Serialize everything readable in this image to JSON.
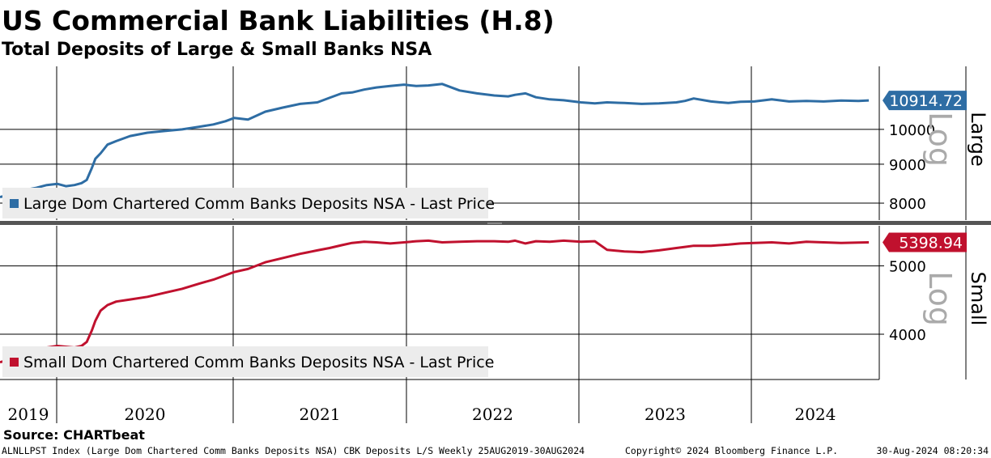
{
  "header": {
    "title": "US Commercial Bank Liabilities (H.8)",
    "subtitle": "Total Deposits of Large & Small Banks NSA"
  },
  "footer": {
    "source": "Source: CHARTbeat",
    "index_info": "ALNLLPST Index (Large Dom Chartered Comm Banks Deposits NSA) CBK Deposits L/S  Weekly 25AUG2019-30AUG2024",
    "copyright": "Copyright© 2024 Bloomberg Finance L.P.",
    "timestamp": "30-Aug-2024 08:20:34"
  },
  "chart_data": [
    {
      "type": "line",
      "panel": "Large",
      "scale_label": "Log",
      "log_scale": true,
      "legend": "Large Dom Chartered Comm Banks Deposits NSA - Last Price",
      "last_value_label": "10914.72",
      "last_value": 10914.72,
      "color": "#2e6da4",
      "y_ticks": [
        8000,
        9000,
        10000
      ],
      "y_tick_labels": [
        "8000",
        "9000",
        "10000"
      ],
      "ylim": [
        7600,
        12100
      ],
      "x_ticks": [
        2019.65,
        2020.0,
        2021.0,
        2022.0,
        2023.0,
        2024.0
      ],
      "series": [
        {
          "x": [
            2019.65,
            2019.7,
            2019.75,
            2019.8,
            2019.86,
            2019.92,
            2019.98,
            2020.03,
            2020.08,
            2020.12,
            2020.15,
            2020.18,
            2020.2,
            2020.23,
            2020.27,
            2020.32,
            2020.4,
            2020.5,
            2020.6,
            2020.7,
            2020.8,
            2020.88,
            2020.95,
            2021.0,
            2021.08,
            2021.18,
            2021.28,
            2021.38,
            2021.48,
            2021.55,
            2021.62,
            2021.68,
            2021.75,
            2021.82,
            2021.9,
            2021.98,
            2022.05,
            2022.12,
            2022.2,
            2022.3,
            2022.4,
            2022.5,
            2022.58,
            2022.62,
            2022.68,
            2022.74,
            2022.82,
            2022.9,
            2023.0,
            2023.08,
            2023.15,
            2023.25,
            2023.35,
            2023.45,
            2023.55,
            2023.6,
            2023.65,
            2023.75,
            2023.85,
            2023.92,
            2024.0,
            2024.1,
            2024.2,
            2024.3,
            2024.4,
            2024.5,
            2024.6,
            2024.66
          ],
          "y": [
            8150,
            8200,
            8250,
            8330,
            8380,
            8450,
            8480,
            8420,
            8450,
            8500,
            8580,
            8900,
            9150,
            9300,
            9550,
            9650,
            9800,
            9900,
            9950,
            10000,
            10080,
            10150,
            10250,
            10350,
            10300,
            10550,
            10680,
            10800,
            10850,
            11000,
            11150,
            11180,
            11280,
            11350,
            11400,
            11450,
            11400,
            11420,
            11470,
            11250,
            11150,
            11080,
            11050,
            11100,
            11150,
            11020,
            10950,
            10920,
            10850,
            10820,
            10850,
            10830,
            10800,
            10820,
            10850,
            10900,
            10980,
            10880,
            10830,
            10870,
            10880,
            10950,
            10880,
            10900,
            10880,
            10910,
            10900,
            10914.72
          ]
        }
      ]
    },
    {
      "type": "line",
      "panel": "Small",
      "scale_label": "Log",
      "log_scale": true,
      "legend": "Small Dom Chartered Comm Banks Deposits NSA - Last Price",
      "last_value_label": "5398.94",
      "last_value": 5398.94,
      "color": "#c0112e",
      "y_ticks": [
        4000,
        5000
      ],
      "y_tick_labels": [
        "4000",
        "5000"
      ],
      "ylim": [
        3450,
        5700
      ],
      "x_ticks": [
        2019.65,
        2020.0,
        2021.0,
        2022.0,
        2023.0,
        2024.0
      ],
      "x_tick_labels": [
        "2019",
        "2020",
        "2021",
        "2022",
        "2023",
        "2024"
      ],
      "series": [
        {
          "x": [
            2019.65,
            2019.7,
            2019.75,
            2019.8,
            2019.86,
            2019.92,
            2019.98,
            2020.03,
            2020.08,
            2020.12,
            2020.15,
            2020.18,
            2020.2,
            2020.23,
            2020.27,
            2020.32,
            2020.4,
            2020.5,
            2020.6,
            2020.7,
            2020.8,
            2020.88,
            2020.95,
            2021.0,
            2021.08,
            2021.18,
            2021.28,
            2021.38,
            2021.48,
            2021.55,
            2021.62,
            2021.68,
            2021.75,
            2021.82,
            2021.9,
            2021.98,
            2022.05,
            2022.12,
            2022.2,
            2022.3,
            2022.4,
            2022.5,
            2022.58,
            2022.62,
            2022.68,
            2022.74,
            2022.82,
            2022.9,
            2023.0,
            2023.08,
            2023.15,
            2023.25,
            2023.35,
            2023.45,
            2023.55,
            2023.6,
            2023.65,
            2023.75,
            2023.85,
            2023.92,
            2024.0,
            2024.1,
            2024.2,
            2024.3,
            2024.4,
            2024.5,
            2024.6,
            2024.66
          ],
          "y": [
            3650,
            3680,
            3720,
            3750,
            3790,
            3830,
            3850,
            3840,
            3830,
            3850,
            3900,
            4050,
            4180,
            4320,
            4400,
            4450,
            4480,
            4520,
            4580,
            4640,
            4720,
            4780,
            4850,
            4900,
            4950,
            5060,
            5130,
            5200,
            5260,
            5300,
            5350,
            5390,
            5410,
            5400,
            5380,
            5400,
            5420,
            5430,
            5400,
            5410,
            5420,
            5420,
            5410,
            5430,
            5380,
            5420,
            5410,
            5430,
            5410,
            5420,
            5270,
            5240,
            5230,
            5260,
            5300,
            5320,
            5340,
            5340,
            5360,
            5380,
            5390,
            5400,
            5380,
            5410,
            5400,
            5390,
            5395,
            5398.94
          ]
        }
      ]
    }
  ]
}
